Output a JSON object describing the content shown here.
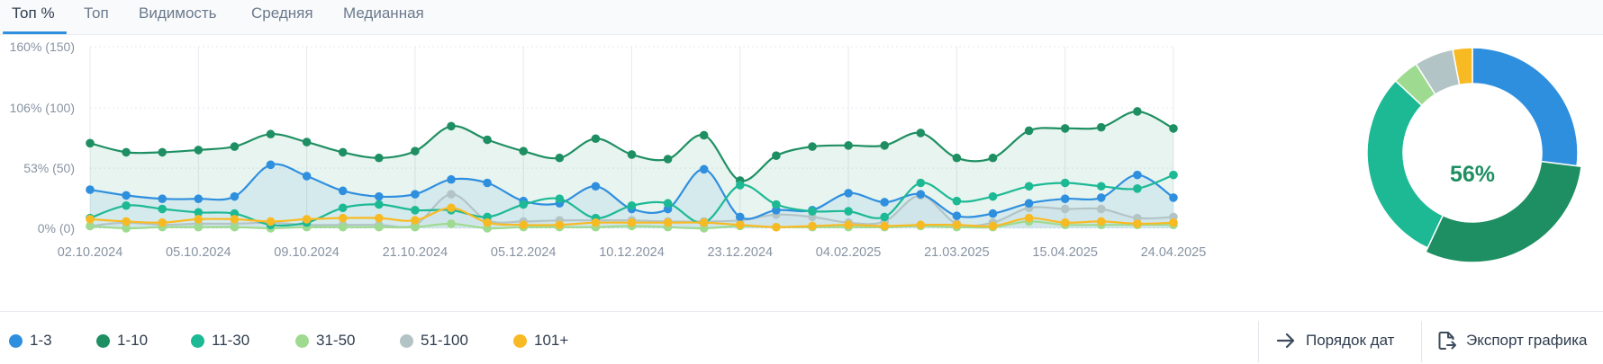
{
  "tabs": [
    {
      "label": "Топ %",
      "active": true
    },
    {
      "label": "Топ",
      "active": false
    },
    {
      "label": "Видимость",
      "active": false
    },
    {
      "label": "Средняя",
      "active": false
    },
    {
      "label": "Медианная",
      "active": false
    }
  ],
  "chart_data": {
    "type": "area",
    "y_ticks": [
      "160% (150)",
      "106% (100)",
      "53% (50)",
      "0% (0)"
    ],
    "y_tick_values": [
      160,
      106,
      53,
      0
    ],
    "ylim": [
      0,
      160
    ],
    "x_tick_labels": [
      "02.10.2024",
      "05.10.2024",
      "09.10.2024",
      "21.10.2024",
      "05.12.2024",
      "10.12.2024",
      "23.12.2024",
      "04.02.2025",
      "21.03.2025",
      "15.04.2025",
      "24.04.2025"
    ],
    "x_tick_indices": [
      0,
      3,
      6,
      9,
      12,
      15,
      18,
      21,
      24,
      27,
      30
    ],
    "point_count": 31,
    "series": [
      {
        "name": "1-10",
        "color": "#1e8f62",
        "fill": true,
        "values": [
          75,
          67,
          67,
          69,
          72,
          83,
          76,
          67,
          62,
          68,
          90,
          78,
          68,
          62,
          79,
          65,
          61,
          82,
          42,
          64,
          72,
          73,
          73,
          84,
          62,
          62,
          86,
          88,
          89,
          103,
          88
        ]
      },
      {
        "name": "1-3",
        "color": "#2f8fdf",
        "fill": true,
        "values": [
          34,
          29,
          26,
          26,
          28,
          56,
          46,
          33,
          28,
          30,
          43,
          40,
          24,
          22,
          37,
          17,
          17,
          52,
          10,
          16,
          16,
          31,
          23,
          30,
          11,
          13,
          22,
          26,
          27,
          47,
          27
        ]
      },
      {
        "name": "11-30",
        "color": "#1db995",
        "fill": false,
        "values": [
          9,
          20,
          17,
          14,
          13,
          3,
          5,
          18,
          21,
          16,
          16,
          10,
          21,
          26,
          9,
          20,
          22,
          5,
          38,
          21,
          15,
          15,
          10,
          40,
          24,
          28,
          37,
          40,
          37,
          35,
          47
        ]
      },
      {
        "name": "31-50",
        "color": "#9edb90",
        "fill": false,
        "values": [
          2,
          0,
          1,
          1,
          1,
          0,
          1,
          1,
          1,
          1,
          4,
          0,
          1,
          1,
          1,
          2,
          1,
          0,
          2,
          1,
          1,
          1,
          1,
          2,
          1,
          1,
          6,
          3,
          3,
          3,
          3
        ]
      },
      {
        "name": "51-100",
        "color": "#b3c4c6",
        "fill": true,
        "values": [
          2,
          5,
          3,
          4,
          4,
          5,
          3,
          3,
          3,
          3,
          30,
          7,
          6,
          7,
          7,
          7,
          6,
          6,
          7,
          12,
          10,
          5,
          6,
          29,
          4,
          5,
          18,
          17,
          17,
          9,
          10
        ]
      },
      {
        "name": "101+",
        "color": "#f8ba23",
        "fill": false,
        "values": [
          8,
          6,
          5,
          8,
          8,
          6,
          8,
          9,
          9,
          7,
          18,
          5,
          3,
          3,
          5,
          5,
          5,
          5,
          3,
          1,
          2,
          3,
          2,
          3,
          3,
          2,
          9,
          5,
          6,
          4,
          5
        ]
      }
    ]
  },
  "donut": {
    "label": "56%",
    "label_color": "#1e8f62",
    "segments": [
      {
        "color": "#2f8fdf",
        "percent": 27
      },
      {
        "color": "#1e8f62",
        "percent": 30
      },
      {
        "color": "#1db995",
        "percent": 30
      },
      {
        "color": "#9edb90",
        "percent": 4
      },
      {
        "color": "#b3c4c6",
        "percent": 6
      },
      {
        "color": "#f8ba23",
        "percent": 3
      }
    ]
  },
  "legend": [
    {
      "label": "1-3",
      "color": "#2f8fdf"
    },
    {
      "label": "1-10",
      "color": "#1e8f62"
    },
    {
      "label": "11-30",
      "color": "#1db995"
    },
    {
      "label": "31-50",
      "color": "#9edb90"
    },
    {
      "label": "51-100",
      "color": "#b3c4c6"
    },
    {
      "label": "101+",
      "color": "#f8ba23"
    }
  ],
  "footer": {
    "date_order_label": "Порядок дат",
    "date_order_icon": "arrow-right-icon",
    "export_label": "Экспорт графика",
    "export_icon": "file-export-icon"
  }
}
